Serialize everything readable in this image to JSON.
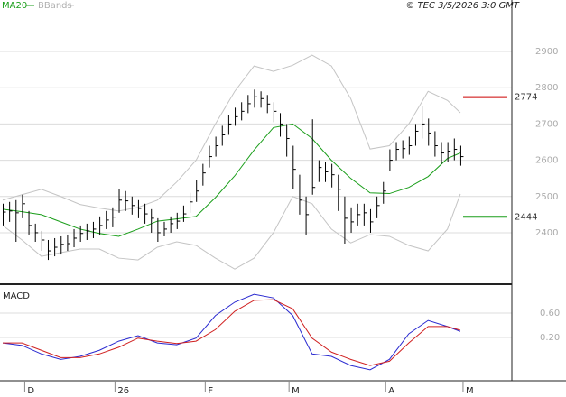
{
  "chart_data": {
    "type": "ohlc",
    "credit": "© TEC 3/5/2026 3:0 GMT",
    "categories": [
      null,
      null,
      null,
      "D",
      null,
      null,
      null,
      null,
      null,
      null,
      null,
      null,
      null,
      null,
      null,
      null,
      null,
      "26",
      null,
      null,
      null,
      null,
      null,
      null,
      null,
      null,
      null,
      null,
      null,
      null,
      null,
      "F",
      null,
      null,
      null,
      null,
      null,
      null,
      null,
      null,
      null,
      null,
      null,
      null,
      "M",
      null,
      null,
      null,
      null,
      null,
      null,
      null,
      null,
      null,
      null,
      null,
      null,
      null,
      null,
      "A",
      null,
      null,
      null,
      null,
      null,
      null,
      null,
      null,
      null,
      null,
      null,
      "M"
    ],
    "close": [
      2457,
      2460,
      2455,
      2480,
      2420,
      2400,
      2380,
      2350,
      2360,
      2368,
      2370,
      2385,
      2398,
      2405,
      2410,
      2420,
      2435,
      2443,
      2490,
      2488,
      2475,
      2467,
      2452,
      2440,
      2400,
      2410,
      2425,
      2432,
      2452,
      2485,
      2515,
      2565,
      2610,
      2640,
      2670,
      2700,
      2720,
      2735,
      2756,
      2775,
      2770,
      2755,
      2735,
      2700,
      2660,
      2575,
      2490,
      2450,
      2525,
      2580,
      2568,
      2560,
      2520,
      2440,
      2430,
      2450,
      2455,
      2430,
      2475,
      2515,
      2600,
      2630,
      2632,
      2640,
      2680,
      2700,
      2675,
      2640,
      2620,
      2625,
      2630,
      2610
    ],
    "high": [
      2480,
      2485,
      2490,
      2505,
      2460,
      2425,
      2405,
      2380,
      2385,
      2390,
      2395,
      2410,
      2420,
      2425,
      2430,
      2445,
      2460,
      2470,
      2520,
      2515,
      2500,
      2490,
      2480,
      2465,
      2440,
      2430,
      2445,
      2455,
      2475,
      2510,
      2545,
      2590,
      2640,
      2665,
      2695,
      2725,
      2745,
      2760,
      2780,
      2795,
      2790,
      2780,
      2760,
      2730,
      2700,
      2640,
      2560,
      2500,
      2713,
      2600,
      2595,
      2590,
      2560,
      2500,
      2470,
      2480,
      2480,
      2465,
      2500,
      2540,
      2630,
      2650,
      2655,
      2665,
      2700,
      2750,
      2715,
      2680,
      2650,
      2650,
      2660,
      2640
    ],
    "low": [
      2420,
      2430,
      2375,
      2440,
      2395,
      2375,
      2350,
      2325,
      2335,
      2340,
      2350,
      2360,
      2375,
      2380,
      2385,
      2395,
      2410,
      2415,
      2455,
      2460,
      2450,
      2440,
      2425,
      2400,
      2375,
      2390,
      2400,
      2410,
      2430,
      2455,
      2485,
      2530,
      2580,
      2610,
      2640,
      2670,
      2695,
      2710,
      2730,
      2745,
      2745,
      2730,
      2705,
      2665,
      2610,
      2520,
      2450,
      2395,
      2505,
      2540,
      2540,
      2525,
      2460,
      2370,
      2400,
      2420,
      2420,
      2400,
      2440,
      2480,
      2570,
      2600,
      2605,
      2615,
      2640,
      2660,
      2640,
      2610,
      2590,
      2595,
      2600,
      2585
    ],
    "bar_color": "#000000",
    "ylim": [
      2258,
      3042
    ],
    "yticks": [
      2400,
      2500,
      2600,
      2700,
      2800,
      2900
    ],
    "grid": true,
    "series": [
      {
        "name": "MA20",
        "color": "#1a9e1a",
        "x": [
          0,
          3,
          6,
          9,
          12,
          15,
          18,
          21,
          24,
          27,
          30,
          33,
          36,
          39,
          42,
          45,
          48,
          51,
          54,
          57,
          60,
          63,
          66,
          69,
          71
        ],
        "values": [
          2465,
          2458,
          2450,
          2430,
          2410,
          2398,
          2390,
          2410,
          2432,
          2438,
          2445,
          2497,
          2557,
          2628,
          2690,
          2700,
          2660,
          2600,
          2550,
          2510,
          2508,
          2525,
          2555,
          2605,
          2620
        ]
      },
      {
        "name": "BBands",
        "color": "#c4c4c4",
        "x": [
          0,
          3,
          6,
          9,
          12,
          15,
          18,
          21,
          24,
          27,
          30,
          33,
          36,
          39,
          42,
          45,
          48,
          51,
          54,
          57,
          60,
          63,
          66,
          69,
          71
        ],
        "upper": [
          2490,
          2505,
          2520,
          2500,
          2478,
          2468,
          2460,
          2470,
          2490,
          2540,
          2600,
          2700,
          2790,
          2860,
          2845,
          2862,
          2890,
          2860,
          2770,
          2631,
          2640,
          2700,
          2790,
          2765,
          2731
        ],
        "lower": [
          2420,
          2380,
          2335,
          2345,
          2355,
          2355,
          2330,
          2325,
          2360,
          2375,
          2365,
          2330,
          2300,
          2330,
          2400,
          2500,
          2480,
          2410,
          2372,
          2395,
          2390,
          2365,
          2350,
          2410,
          2507
        ]
      }
    ],
    "levels": [
      {
        "value": 2774,
        "color": "#cc0000"
      },
      {
        "value": 2444,
        "color": "#1a9e1a"
      }
    ],
    "macd": {
      "title": "MACD",
      "ylim": [
        -0.51,
        1.03
      ],
      "yticks": [
        {
          "value": 0.2,
          "label": "0.20"
        },
        {
          "value": 0.6,
          "label": "0.60"
        }
      ],
      "x": [
        0,
        3,
        6,
        9,
        12,
        15,
        18,
        21,
        24,
        27,
        30,
        33,
        36,
        39,
        42,
        45,
        48,
        51,
        54,
        57,
        60,
        63,
        66,
        69,
        71
      ],
      "series": [
        {
          "color": "#2a2ad0",
          "values": [
            0.11,
            0.07,
            -0.07,
            -0.16,
            -0.11,
            -0.01,
            0.14,
            0.23,
            0.11,
            0.08,
            0.19,
            0.56,
            0.78,
            0.91,
            0.85,
            0.56,
            -0.07,
            -0.11,
            -0.26,
            -0.33,
            -0.16,
            0.26,
            0.48,
            0.38,
            0.3
          ]
        },
        {
          "color": "#d02020",
          "values": [
            0.11,
            0.11,
            -0.01,
            -0.13,
            -0.13,
            -0.07,
            0.04,
            0.19,
            0.14,
            0.1,
            0.14,
            0.33,
            0.63,
            0.81,
            0.82,
            0.67,
            0.19,
            -0.04,
            -0.16,
            -0.26,
            -0.19,
            0.11,
            0.38,
            0.38,
            0.32
          ]
        }
      ]
    }
  }
}
